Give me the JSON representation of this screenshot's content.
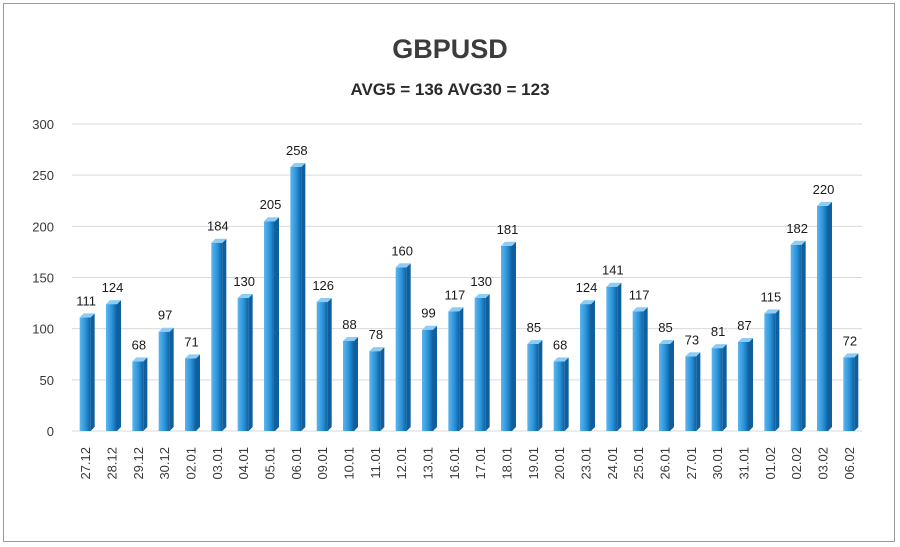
{
  "chart_data": {
    "type": "bar",
    "title": "GBPUSD",
    "subtitle": "AVG5 = 136 AVG30 = 123",
    "xlabel": "",
    "ylabel": "",
    "ylim": [
      0,
      300
    ],
    "yticks": [
      0,
      50,
      100,
      150,
      200,
      250,
      300
    ],
    "grid": true,
    "legend": "none",
    "categories": [
      "27.12",
      "28.12",
      "29.12",
      "30.12",
      "02.01",
      "03.01",
      "04.01",
      "05.01",
      "06.01",
      "09.01",
      "10.01",
      "11.01",
      "12.01",
      "13.01",
      "16.01",
      "17.01",
      "18.01",
      "19.01",
      "20.01",
      "23.01",
      "24.01",
      "25.01",
      "26.01",
      "27.01",
      "30.01",
      "31.01",
      "01.02",
      "02.02",
      "03.02",
      "06.02"
    ],
    "values": [
      111,
      124,
      68,
      97,
      71,
      184,
      130,
      205,
      258,
      126,
      88,
      78,
      160,
      99,
      117,
      130,
      181,
      85,
      68,
      124,
      141,
      117,
      85,
      73,
      81,
      87,
      115,
      182,
      220,
      72
    ],
    "colors": {
      "bar_light": "#5db5ee",
      "bar_mid": "#2a93da",
      "bar_dark": "#0f5f9e",
      "bar_top": "#8dcdf5"
    }
  }
}
